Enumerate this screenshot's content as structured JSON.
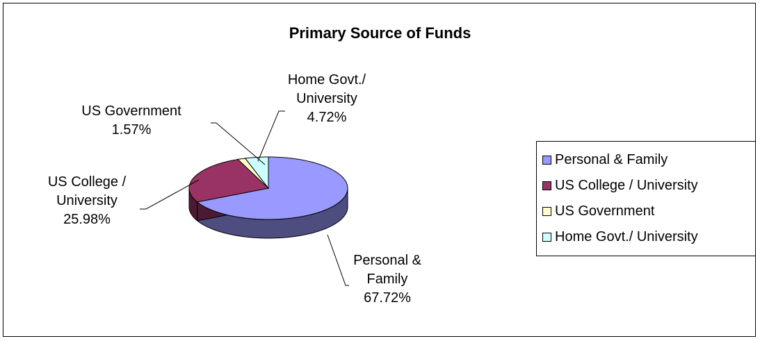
{
  "chart_data": {
    "type": "pie",
    "title": "Primary Source of Funds",
    "categories": [
      "Personal & Family",
      "US College / University",
      "US Government",
      "Home Govt./ University"
    ],
    "values": [
      67.72,
      25.98,
      1.57,
      4.72
    ],
    "value_labels": [
      "67.72%",
      "25.98%",
      "1.57%",
      "4.72%"
    ],
    "colors": [
      "#9999ff",
      "#993366",
      "#ffffcc",
      "#ccffff"
    ],
    "legend": "right"
  }
}
